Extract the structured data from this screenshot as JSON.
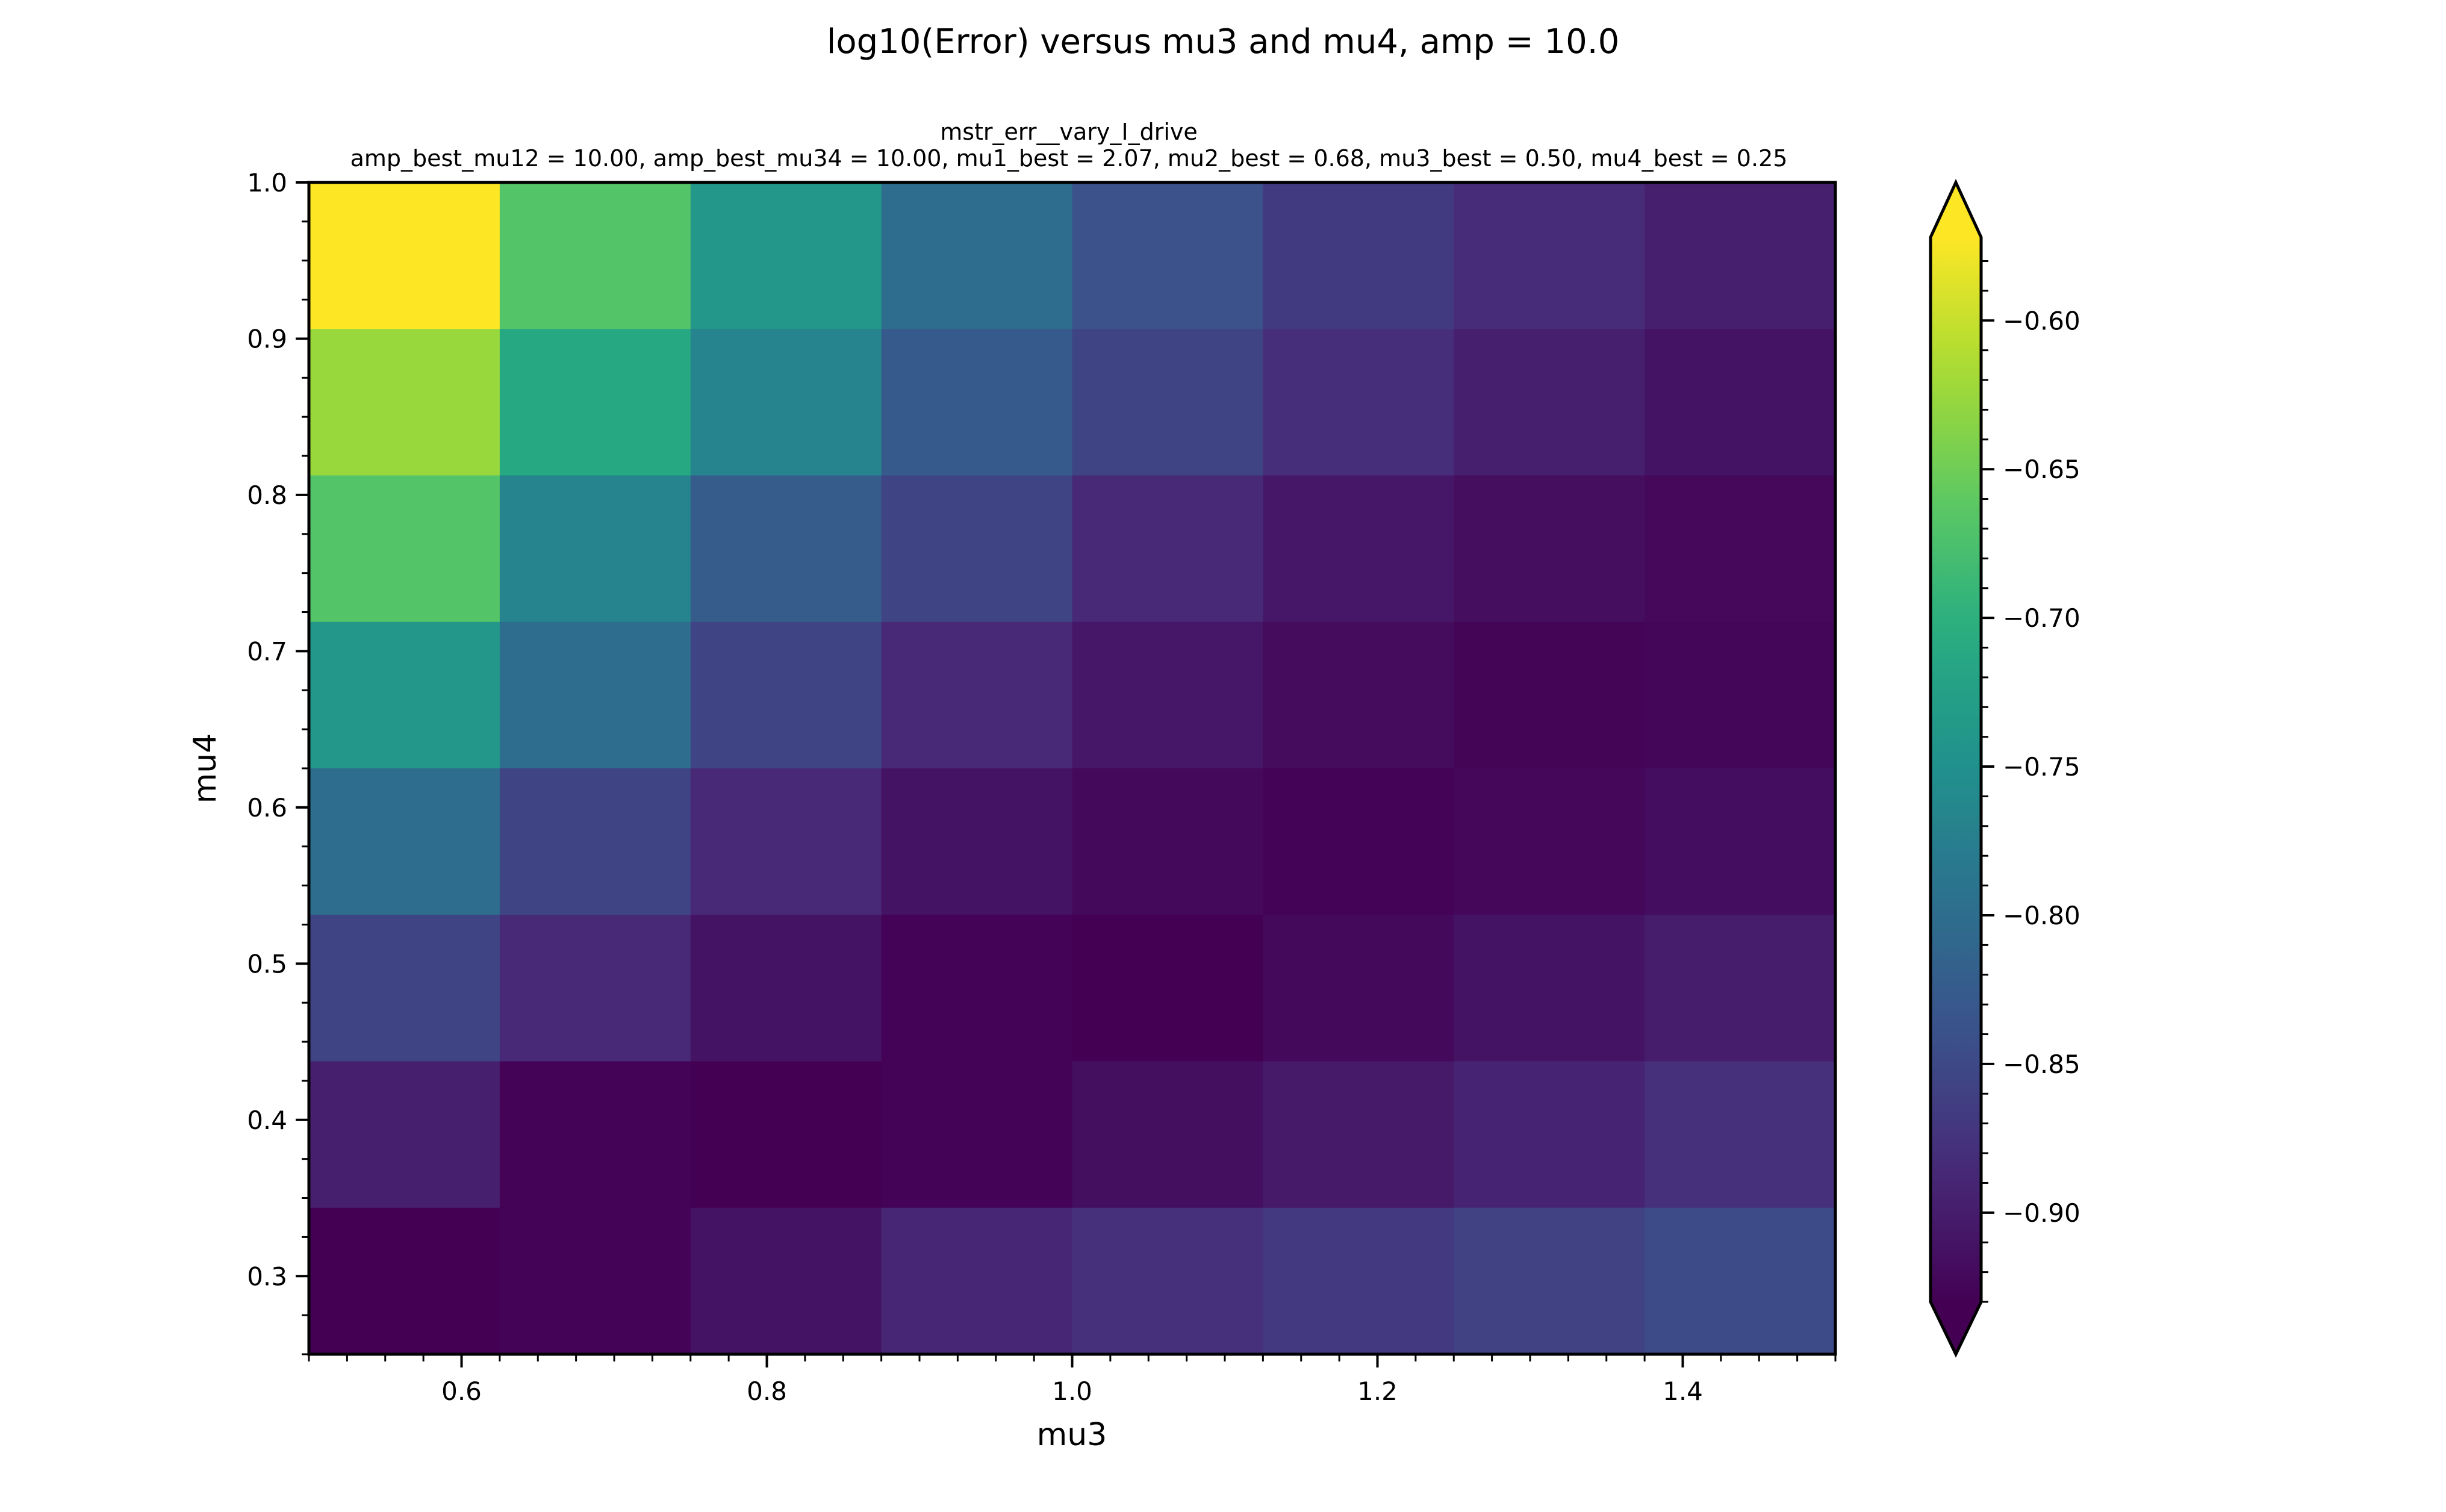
{
  "chart_data": {
    "type": "heatmap",
    "suptitle": "log10(Error) versus mu3 and mu4, amp = 10.0",
    "title_line1": "mstr_err__vary_I_drive",
    "title_line2": "amp_best_mu12 = 10.00, amp_best_mu34 = 10.00, mu1_best = 2.07, mu2_best = 0.68, mu3_best = 0.50, mu4_best = 0.25",
    "xlabel": "mu3",
    "ylabel": "mu4",
    "xlim": [
      0.5,
      1.5
    ],
    "ylim": [
      0.25,
      1.0
    ],
    "x_edges": [
      0.5,
      0.625,
      0.75,
      0.875,
      1.0,
      1.125,
      1.25,
      1.375,
      1.5
    ],
    "y_edges": [
      0.25,
      0.34375,
      0.4375,
      0.53125,
      0.625,
      0.71875,
      0.8125,
      0.90625,
      1.0
    ],
    "x_ticks": [
      0.6,
      0.8,
      1.0,
      1.2,
      1.4
    ],
    "x_tick_labels": [
      "0.6",
      "0.8",
      "1.0",
      "1.2",
      "1.4"
    ],
    "y_ticks": [
      0.3,
      0.4,
      0.5,
      0.6,
      0.7,
      0.8,
      0.9,
      1.0
    ],
    "y_tick_labels": [
      "0.3",
      "0.4",
      "0.5",
      "0.6",
      "0.7",
      "0.8",
      "0.9",
      "1.0"
    ],
    "values_top_to_bottom": [
      [
        -0.57,
        -0.668,
        -0.738,
        -0.8,
        -0.839,
        -0.867,
        -0.884,
        -0.898
      ],
      [
        -0.625,
        -0.712,
        -0.768,
        -0.827,
        -0.856,
        -0.881,
        -0.897,
        -0.91
      ],
      [
        -0.668,
        -0.768,
        -0.825,
        -0.856,
        -0.887,
        -0.906,
        -0.916,
        -0.922
      ],
      [
        -0.738,
        -0.8,
        -0.856,
        -0.887,
        -0.906,
        -0.919,
        -0.926,
        -0.925
      ],
      [
        -0.8,
        -0.856,
        -0.887,
        -0.91,
        -0.921,
        -0.928,
        -0.923,
        -0.917
      ],
      [
        -0.856,
        -0.887,
        -0.91,
        -0.928,
        -0.931,
        -0.921,
        -0.911,
        -0.9
      ],
      [
        -0.898,
        -0.928,
        -0.935,
        -0.928,
        -0.915,
        -0.904,
        -0.892,
        -0.879
      ],
      [
        -0.935,
        -0.928,
        -0.91,
        -0.89,
        -0.879,
        -0.868,
        -0.858,
        -0.847
      ]
    ],
    "vmin": -0.93,
    "vmax": -0.572,
    "colormap": "viridis",
    "colorbar_extend": "both",
    "colorbar_ticks": [
      -0.9,
      -0.85,
      -0.8,
      -0.75,
      -0.7,
      -0.65,
      -0.6
    ],
    "colorbar_tick_labels": [
      "−0.90",
      "−0.85",
      "−0.80",
      "−0.75",
      "−0.70",
      "−0.65",
      "−0.60"
    ]
  }
}
